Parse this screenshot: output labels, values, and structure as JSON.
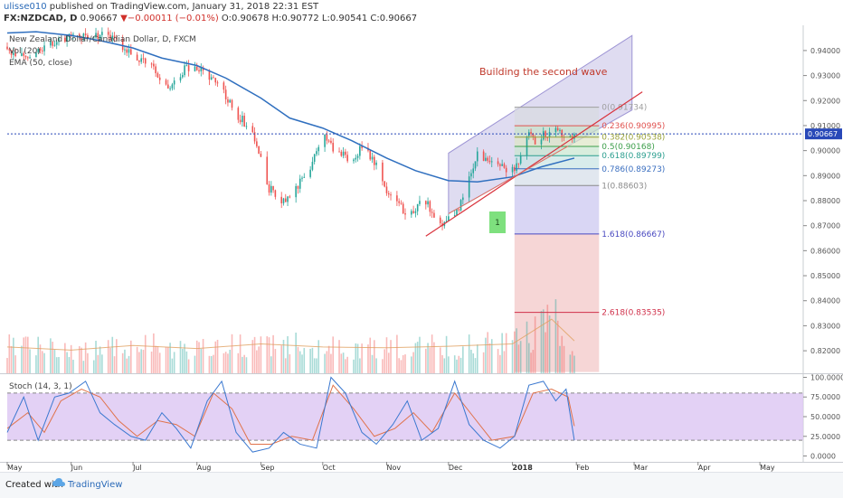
{
  "header": {
    "author": "ulisse010",
    "published": "published on TradingView.com, January 31, 2018 22:31 EST",
    "symbol": "FX:NZDCAD, D",
    "last": "0.90667",
    "change": "−0.00011 (−0.01%)",
    "ohlc": "O:0.90678 H:0.90772 L:0.90541 C:0.90667"
  },
  "legend": {
    "title": "New Zealand Dollar/Canadian Dollar, D, FXCM",
    "vol": "Vol (20)",
    "ema": "EMA (50, close)"
  },
  "annotations": {
    "wave_title": "Building the second wave",
    "wave_label": "1"
  },
  "colors": {
    "up": "#26a69a",
    "down": "#ef5350",
    "ema": "#2f6fbf",
    "trend": "#d9323c",
    "channel": "#9d94d4",
    "stoch_k": "#3a78d0",
    "stoch_d": "#e0724a",
    "stoch_band": "#dcc6f3",
    "price_line": "#2848b8"
  },
  "chart_data": [
    {
      "type": "candlestick",
      "ylim": [
        0.811,
        0.949
      ],
      "price_axis": [
        "0.94000",
        "0.93000",
        "0.92000",
        "0.91000",
        "0.90000",
        "0.89000",
        "0.88000",
        "0.87000",
        "0.86000",
        "0.85000",
        "0.84000",
        "0.83000",
        "0.82000"
      ],
      "price_ticks": [
        0.94,
        0.93,
        0.92,
        0.91,
        0.9,
        0.89,
        0.88,
        0.87,
        0.86,
        0.85,
        0.84,
        0.83,
        0.82
      ],
      "last_price": 0.90667,
      "last_price_label": "0.90667",
      "time_axis": [
        "May",
        "Jun",
        "Jul",
        "Aug",
        "Sep",
        "Oct",
        "Nov",
        "Dec",
        "2018",
        "Feb",
        "Mar",
        "Apr",
        "May"
      ],
      "time_ticks": [
        "2017-05-01",
        "2017-06-01",
        "2017-07-01",
        "2017-08-01",
        "2017-09-01",
        "2017-10-01",
        "2017-11-01",
        "2017-12-01",
        "2018-01-01",
        "2018-02-01",
        "2018-03-01",
        "2018-04-01",
        "2018-05-01"
      ],
      "xlim": [
        "2017-05-01",
        "2018-05-22"
      ],
      "close_path": [
        [
          "2017-05-01",
          0.9395
        ],
        [
          "2017-05-12",
          0.9385
        ],
        [
          "2017-05-22",
          0.943
        ],
        [
          "2017-06-01",
          0.945
        ],
        [
          "2017-06-12",
          0.9465
        ],
        [
          "2017-06-22",
          0.9455
        ],
        [
          "2017-07-01",
          0.938
        ],
        [
          "2017-07-10",
          0.934
        ],
        [
          "2017-07-18",
          0.9245
        ],
        [
          "2017-07-26",
          0.9325
        ],
        [
          "2017-08-03",
          0.933
        ],
        [
          "2017-08-12",
          0.926
        ],
        [
          "2017-08-20",
          0.915
        ],
        [
          "2017-08-28",
          0.9075
        ],
        [
          "2017-09-05",
          0.885
        ],
        [
          "2017-09-12",
          0.879
        ],
        [
          "2017-09-18",
          0.884
        ],
        [
          "2017-09-25",
          0.894
        ],
        [
          "2017-10-01",
          0.9055
        ],
        [
          "2017-10-07",
          0.9005
        ],
        [
          "2017-10-14",
          0.896
        ],
        [
          "2017-10-21",
          0.902
        ],
        [
          "2017-10-28",
          0.892
        ],
        [
          "2017-11-04",
          0.879
        ],
        [
          "2017-11-12",
          0.875
        ],
        [
          "2017-11-20",
          0.88
        ],
        [
          "2017-11-25",
          0.87
        ],
        [
          "2017-12-01",
          0.873
        ],
        [
          "2017-12-06",
          0.877
        ],
        [
          "2017-12-11",
          0.888
        ],
        [
          "2017-12-15",
          0.899
        ],
        [
          "2017-12-20",
          0.896
        ],
        [
          "2017-12-26",
          0.8935
        ],
        [
          "2017-12-31",
          0.89
        ],
        [
          "2018-01-04",
          0.896
        ],
        [
          "2018-01-08",
          0.906
        ],
        [
          "2018-01-13",
          0.904
        ],
        [
          "2018-01-18",
          0.907
        ],
        [
          "2018-01-23",
          0.909
        ],
        [
          "2018-01-26",
          0.906
        ],
        [
          "2018-01-31",
          0.90667
        ]
      ],
      "ema_50": [
        [
          "2017-05-01",
          0.947
        ],
        [
          "2017-05-15",
          0.9475
        ],
        [
          "2017-06-01",
          0.946
        ],
        [
          "2017-06-15",
          0.944
        ],
        [
          "2017-07-01",
          0.941
        ],
        [
          "2017-07-15",
          0.937
        ],
        [
          "2017-08-01",
          0.934
        ],
        [
          "2017-08-15",
          0.929
        ],
        [
          "2017-09-01",
          0.921
        ],
        [
          "2017-09-15",
          0.913
        ],
        [
          "2017-10-01",
          0.909
        ],
        [
          "2017-10-15",
          0.904
        ],
        [
          "2017-11-01",
          0.897
        ],
        [
          "2017-11-15",
          0.892
        ],
        [
          "2017-12-01",
          0.888
        ],
        [
          "2017-12-15",
          0.8875
        ],
        [
          "2018-01-01",
          0.8895
        ],
        [
          "2018-01-15",
          0.8935
        ],
        [
          "2018-01-31",
          0.897
        ]
      ],
      "fibonacci": [
        {
          "label": "0(0.91734)",
          "value": 0.91734,
          "color": "#9e9e9e"
        },
        {
          "label": "0.236(0.90995)",
          "value": 0.90995,
          "color": "#e0524f"
        },
        {
          "label": "0.382(0.90538)",
          "value": 0.90538,
          "color": "#9aa33a"
        },
        {
          "label": "0.5(0.90168)",
          "value": 0.90168,
          "color": "#3c9e4a"
        },
        {
          "label": "0.618(0.89799)",
          "value": 0.89799,
          "color": "#2b9e8f"
        },
        {
          "label": "0.786(0.89273)",
          "value": 0.89273,
          "color": "#3b6fc0"
        },
        {
          "label": "1(0.88603)",
          "value": 0.88603,
          "color": "#8a8a8a"
        },
        {
          "label": "1.618(0.86667)",
          "value": 0.86667,
          "color": "#4848c0"
        },
        {
          "label": "2.618(0.83535)",
          "value": 0.83535,
          "color": "#d0304a"
        }
      ],
      "channel": {
        "lower_start": [
          "2017-12-01",
          0.8748
        ],
        "lower_end": [
          "2018-01-28",
          0.9018
        ],
        "upper_start": [
          "2017-12-01",
          0.899
        ],
        "upper_end": [
          "2018-02-28",
          0.946
        ]
      },
      "trendline": {
        "start": [
          "2017-11-20",
          0.8658
        ],
        "end": [
          "2018-03-05",
          0.9235
        ]
      },
      "volume_scale": [
        0,
        100
      ],
      "volume_profile": [
        [
          "2017-05-01",
          34
        ],
        [
          "2017-06-01",
          30
        ],
        [
          "2017-07-01",
          36
        ],
        [
          "2017-08-01",
          32
        ],
        [
          "2017-09-01",
          38
        ],
        [
          "2017-10-01",
          34
        ],
        [
          "2017-11-01",
          33
        ],
        [
          "2017-12-01",
          35
        ],
        [
          "2018-01-01",
          38
        ],
        [
          "2018-01-20",
          70
        ],
        [
          "2018-01-31",
          42
        ]
      ]
    },
    {
      "type": "line",
      "title": "Stoch (14, 3, 1)",
      "ylim": [
        -4,
        104
      ],
      "y_axis": [
        "100.0000",
        "75.0000",
        "50.0000",
        "25.0000",
        "0.0000"
      ],
      "y_ticks": [
        100,
        75,
        50,
        25,
        0
      ],
      "band": [
        20,
        80
      ],
      "k_points": [
        [
          "2017-05-01",
          30
        ],
        [
          "2017-05-09",
          75
        ],
        [
          "2017-05-16",
          20
        ],
        [
          "2017-05-24",
          75
        ],
        [
          "2017-05-31",
          80
        ],
        [
          "2017-06-08",
          95
        ],
        [
          "2017-06-15",
          55
        ],
        [
          "2017-06-22",
          40
        ],
        [
          "2017-06-30",
          25
        ],
        [
          "2017-07-07",
          20
        ],
        [
          "2017-07-15",
          55
        ],
        [
          "2017-07-22",
          35
        ],
        [
          "2017-07-29",
          10
        ],
        [
          "2017-08-06",
          70
        ],
        [
          "2017-08-13",
          95
        ],
        [
          "2017-08-20",
          30
        ],
        [
          "2017-08-28",
          5
        ],
        [
          "2017-09-05",
          10
        ],
        [
          "2017-09-12",
          30
        ],
        [
          "2017-09-20",
          15
        ],
        [
          "2017-09-28",
          10
        ],
        [
          "2017-10-05",
          100
        ],
        [
          "2017-10-12",
          80
        ],
        [
          "2017-10-20",
          30
        ],
        [
          "2017-10-27",
          15
        ],
        [
          "2017-11-04",
          40
        ],
        [
          "2017-11-11",
          70
        ],
        [
          "2017-11-18",
          20
        ],
        [
          "2017-11-26",
          35
        ],
        [
          "2017-12-04",
          95
        ],
        [
          "2017-12-11",
          40
        ],
        [
          "2017-12-18",
          20
        ],
        [
          "2017-12-26",
          10
        ],
        [
          "2018-01-02",
          25
        ],
        [
          "2018-01-09",
          90
        ],
        [
          "2018-01-16",
          95
        ],
        [
          "2018-01-22",
          70
        ],
        [
          "2018-01-27",
          85
        ],
        [
          "2018-01-31",
          20
        ]
      ],
      "d_points": [
        [
          "2017-05-01",
          35
        ],
        [
          "2017-05-11",
          55
        ],
        [
          "2017-05-19",
          30
        ],
        [
          "2017-05-27",
          70
        ],
        [
          "2017-06-06",
          85
        ],
        [
          "2017-06-15",
          75
        ],
        [
          "2017-06-24",
          45
        ],
        [
          "2017-07-03",
          25
        ],
        [
          "2017-07-13",
          45
        ],
        [
          "2017-07-22",
          40
        ],
        [
          "2017-07-31",
          25
        ],
        [
          "2017-08-09",
          80
        ],
        [
          "2017-08-18",
          60
        ],
        [
          "2017-08-27",
          15
        ],
        [
          "2017-09-06",
          15
        ],
        [
          "2017-09-16",
          25
        ],
        [
          "2017-09-26",
          20
        ],
        [
          "2017-10-06",
          90
        ],
        [
          "2017-10-16",
          60
        ],
        [
          "2017-10-26",
          25
        ],
        [
          "2017-11-05",
          35
        ],
        [
          "2017-11-14",
          55
        ],
        [
          "2017-11-23",
          30
        ],
        [
          "2017-12-04",
          80
        ],
        [
          "2017-12-13",
          50
        ],
        [
          "2017-12-22",
          20
        ],
        [
          "2018-01-02",
          25
        ],
        [
          "2018-01-11",
          80
        ],
        [
          "2018-01-20",
          85
        ],
        [
          "2018-01-28",
          75
        ],
        [
          "2018-01-31",
          38
        ]
      ]
    }
  ]
}
